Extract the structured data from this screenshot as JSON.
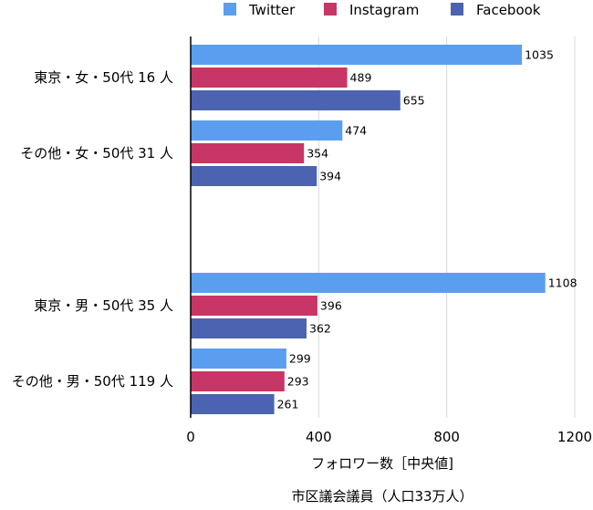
{
  "chart_data": {
    "type": "bar",
    "orientation": "horizontal",
    "categories": [
      "東京・女・50代 16 人",
      "その他・女・50代 31 人",
      "東京・男・50代 35 人",
      "その他・男・50代 119 人"
    ],
    "series": [
      {
        "name": "Twitter",
        "color": "#5b9ef0",
        "values": [
          1035,
          474,
          1108,
          299
        ]
      },
      {
        "name": "Instagram",
        "color": "#c73666",
        "values": [
          489,
          354,
          396,
          293
        ]
      },
      {
        "name": "Facebook",
        "color": "#4b63b1",
        "values": [
          655,
          394,
          362,
          261
        ]
      }
    ],
    "xlim": [
      0,
      1200
    ],
    "xticks": [
      0,
      400,
      800,
      1200
    ],
    "xlabel": "フォロワー数［中央値]",
    "caption": "市区議会議員（人口33万人）",
    "legend_position": "top",
    "grid": true
  }
}
